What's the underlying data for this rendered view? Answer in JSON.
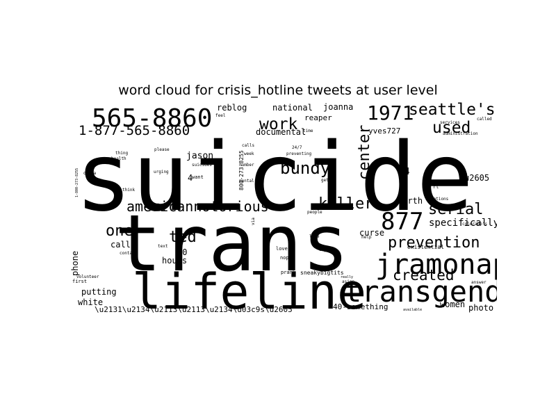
{
  "chart_data": {
    "type": "wordcloud",
    "title": "word cloud for crisis_hotline tweets at user level",
    "colors": {
      "foreground": "#000000",
      "background": "#ffffff"
    },
    "words": [
      {
        "text": "suicide"
      },
      {
        "text": "trans"
      },
      {
        "text": "lifeline"
      },
      {
        "text": "transgender"
      },
      {
        "text": "jramonap"
      },
      {
        "text": "565-8860"
      },
      {
        "text": "1971"
      },
      {
        "text": "seattle's"
      },
      {
        "text": "1-877-565-8860"
      },
      {
        "text": "work"
      },
      {
        "text": "used"
      },
      {
        "text": "bundy"
      },
      {
        "text": "center"
      },
      {
        "text": "americannotorious"
      },
      {
        "text": "killer"
      },
      {
        "text": "877"
      },
      {
        "text": "serial"
      },
      {
        "text": "one"
      },
      {
        "text": "ted"
      },
      {
        "text": "prevention"
      },
      {
        "text": "created"
      },
      {
        "text": "specifically"
      },
      {
        "text": "reblog"
      },
      {
        "text": "national"
      },
      {
        "text": "joanna"
      },
      {
        "text": "documental"
      },
      {
        "text": "reaper"
      },
      {
        "text": "yves727"
      },
      {
        "text": "jason"
      },
      {
        "text": "24"
      },
      {
        "text": "u2605"
      },
      {
        "text": "earth"
      },
      {
        "text": "curse"
      },
      {
        "text": "call"
      },
      {
        "text": "30"
      },
      {
        "text": "hours"
      },
      {
        "text": "putting"
      },
      {
        "text": "white"
      },
      {
        "text": "phone"
      },
      {
        "text": "women"
      },
      {
        "text": "photo"
      },
      {
        "text": "40-something"
      },
      {
        "text": "sneakybigtits"
      },
      {
        "text": "\\u2131\\u2134\\u2113\\u2113\\u2134\\u03c9s\\u2605"
      },
      {
        "text": "800-273-8255"
      },
      {
        "text": "1-800-273-8255"
      },
      {
        "text": "first"
      },
      {
        "text": "volunteer"
      },
      {
        "text": "existential"
      },
      {
        "text": "answer"
      },
      {
        "text": "prank"
      },
      {
        "text": "asian"
      },
      {
        "text": "help"
      },
      {
        "text": "love"
      },
      {
        "text": "nope"
      },
      {
        "text": "like"
      },
      {
        "text": "people"
      },
      {
        "text": "day"
      },
      {
        "text": "really"
      },
      {
        "text": "available"
      },
      {
        "text": "contact"
      },
      {
        "text": "text"
      },
      {
        "text": "please"
      },
      {
        "text": "thing"
      },
      {
        "text": "health"
      },
      {
        "text": "obama"
      },
      {
        "text": "urging"
      },
      {
        "text": "suicides"
      },
      {
        "text": "want"
      },
      {
        "text": "think"
      },
      {
        "text": "calls"
      },
      {
        "text": "week"
      },
      {
        "text": "number"
      },
      {
        "text": "mental"
      },
      {
        "text": "preventing"
      },
      {
        "text": "24/7"
      },
      {
        "text": "time"
      },
      {
        "text": "get"
      },
      {
        "text": "via"
      },
      {
        "text": "nations"
      },
      {
        "text": "services"
      },
      {
        "text": "called"
      },
      {
        "text": "administration"
      },
      {
        "text": "colorado's"
      },
      {
        "text": "feel"
      },
      {
        "text": "4"
      },
      {
        "text": "rt"
      }
    ]
  }
}
